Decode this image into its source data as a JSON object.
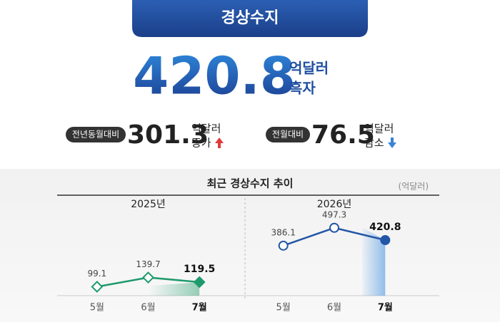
{
  "header": {
    "title": "경상수지",
    "value": 420.8,
    "unit": "억달러",
    "status": "흑자"
  },
  "stats": [
    {
      "label": "전년동월대비",
      "value": 301.3,
      "unit": "억달러",
      "change": "증가"
    },
    {
      "label": "전월대비",
      "value": 76.5,
      "unit": "억달러",
      "change": "감소"
    }
  ],
  "chart_section": {
    "title": "최근 경상수지 추이",
    "unit": "(억달러)"
  },
  "chart_data": [
    {
      "type": "line",
      "title": "2025년",
      "categories": [
        "5월",
        "6월",
        "7월"
      ],
      "series": [
        {
          "color": "#1f9a6c",
          "values": [
            99.1,
            139.7,
            119.5
          ]
        }
      ],
      "ylim": [
        60,
        420
      ],
      "marker": "diamond"
    },
    {
      "type": "line",
      "title": "2026년",
      "categories": [
        "5월",
        "6월",
        "7월"
      ],
      "series": [
        {
          "color": "#2456a6",
          "values": [
            386.1,
            497.3,
            420.8
          ]
        }
      ],
      "ylim": [
        75,
        585
      ],
      "marker": "circle"
    }
  ]
}
